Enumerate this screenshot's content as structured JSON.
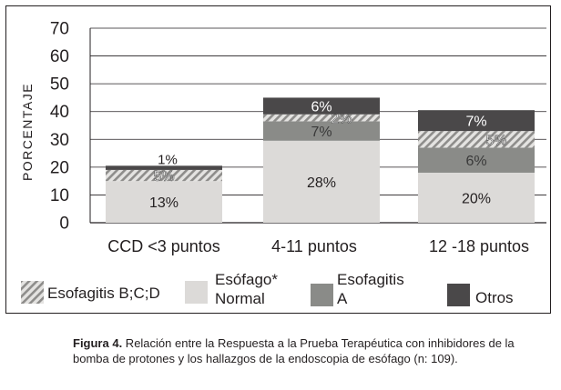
{
  "chart_data": {
    "type": "bar",
    "stacked": true,
    "ylabel": "PORCENTAJE",
    "ylim": [
      0,
      70
    ],
    "yticks": [
      0,
      10,
      20,
      30,
      40,
      50,
      60,
      70
    ],
    "grid": true,
    "categories": [
      "CCD <3 puntos",
      "4-11 puntos",
      "12 -18 puntos"
    ],
    "series": [
      {
        "key": "normal",
        "name": "Esófago* Normal",
        "legend_lines": [
          "Esófago*",
          "Normal"
        ],
        "color": "#dcdad8",
        "values": [
          13,
          28,
          20
        ],
        "segment_heights": [
          15,
          29.5,
          18
        ],
        "labels": [
          "13%",
          "28%",
          "20%"
        ]
      },
      {
        "key": "esofA",
        "name": "Esofagitis A",
        "legend_lines": [
          "Esofagitis",
          "A"
        ],
        "color": "#8a8b88",
        "values": [
          0,
          7,
          6
        ],
        "segment_heights": [
          0,
          7,
          9
        ],
        "labels": [
          "",
          "7%",
          "6%"
        ]
      },
      {
        "key": "esofBCD",
        "name": "Esofagitis B;C;D",
        "legend_lines": [
          "Esofagitis B;C;D"
        ],
        "color": "hatch",
        "values": [
          5,
          2,
          5
        ],
        "segment_heights": [
          4,
          2.5,
          6
        ],
        "labels": [
          "5%",
          "2%",
          "5%"
        ]
      },
      {
        "key": "otros",
        "name": "Otros",
        "legend_lines": [
          "Otros"
        ],
        "color": "#4a4849",
        "values": [
          1,
          6,
          7
        ],
        "segment_heights": [
          1.5,
          6,
          7.5
        ],
        "labels": [
          "1%",
          "6%",
          "7%"
        ]
      }
    ],
    "legend_order": [
      "esofBCD",
      "normal",
      "esofA",
      "otros"
    ],
    "legend_position": "bottom"
  },
  "caption": {
    "label": "Figura 4.",
    "text": " Relación entre la Respuesta a la Prueba Terapéutica con inhibidores de la bomba de protones y los hallazgos de la endoscopia de esófago (n: 109)."
  }
}
